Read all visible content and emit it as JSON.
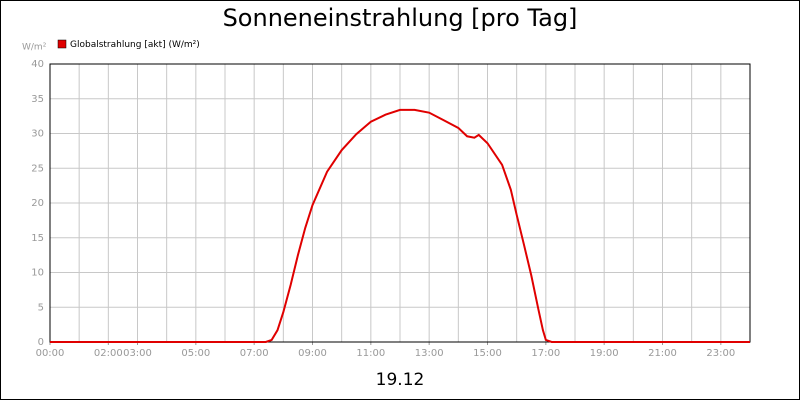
{
  "chart_data": {
    "type": "line",
    "title": "Sonneneinstrahlung [pro Tag]",
    "ylabel": "W/m²",
    "xlabel": "19.12",
    "x": [
      0,
      7.4,
      7.6,
      7.8,
      8.0,
      8.25,
      8.5,
      8.75,
      9.0,
      9.5,
      10.0,
      10.5,
      11.0,
      11.5,
      12.0,
      12.5,
      13.0,
      13.5,
      14.0,
      14.3,
      14.55,
      14.7,
      15.0,
      15.5,
      15.8,
      16.0,
      16.25,
      16.5,
      16.75,
      16.9,
      17.0,
      17.2,
      24
    ],
    "series": [
      {
        "name": "Globalstrahlung [akt] (W/m²)",
        "color": "#e00000",
        "values": [
          0,
          0,
          0.3,
          1.7,
          4.3,
          8.2,
          12.5,
          16.4,
          19.7,
          24.5,
          27.6,
          29.9,
          31.7,
          32.7,
          33.4,
          33.4,
          33.0,
          31.9,
          30.8,
          29.6,
          29.4,
          29.8,
          28.6,
          25.5,
          21.9,
          18.3,
          14.0,
          9.6,
          4.6,
          1.7,
          0.3,
          0,
          0
        ]
      }
    ],
    "xlim": [
      0,
      24
    ],
    "xticks": [
      {
        "value": 0,
        "label": "00:00"
      },
      {
        "value": 2,
        "label": "02:00"
      },
      {
        "value": 3,
        "label": "03:00"
      },
      {
        "value": 5,
        "label": "05:00"
      },
      {
        "value": 7,
        "label": "07:00"
      },
      {
        "value": 9,
        "label": "09:00"
      },
      {
        "value": 11,
        "label": "11:00"
      },
      {
        "value": 13,
        "label": "13:00"
      },
      {
        "value": 15,
        "label": "15:00"
      },
      {
        "value": 17,
        "label": "17:00"
      },
      {
        "value": 19,
        "label": "19:00"
      },
      {
        "value": 21,
        "label": "21:00"
      },
      {
        "value": 23,
        "label": "23:00"
      }
    ],
    "xgridlines": [
      1,
      2,
      3,
      4,
      5,
      6,
      7,
      8,
      9,
      10,
      11,
      12,
      13,
      14,
      15,
      16,
      17,
      18,
      19,
      20,
      21,
      22,
      23
    ],
    "ylim": [
      0,
      40
    ],
    "yticks": [
      0,
      5,
      10,
      15,
      20,
      25,
      30,
      35,
      40
    ],
    "grid": true
  }
}
